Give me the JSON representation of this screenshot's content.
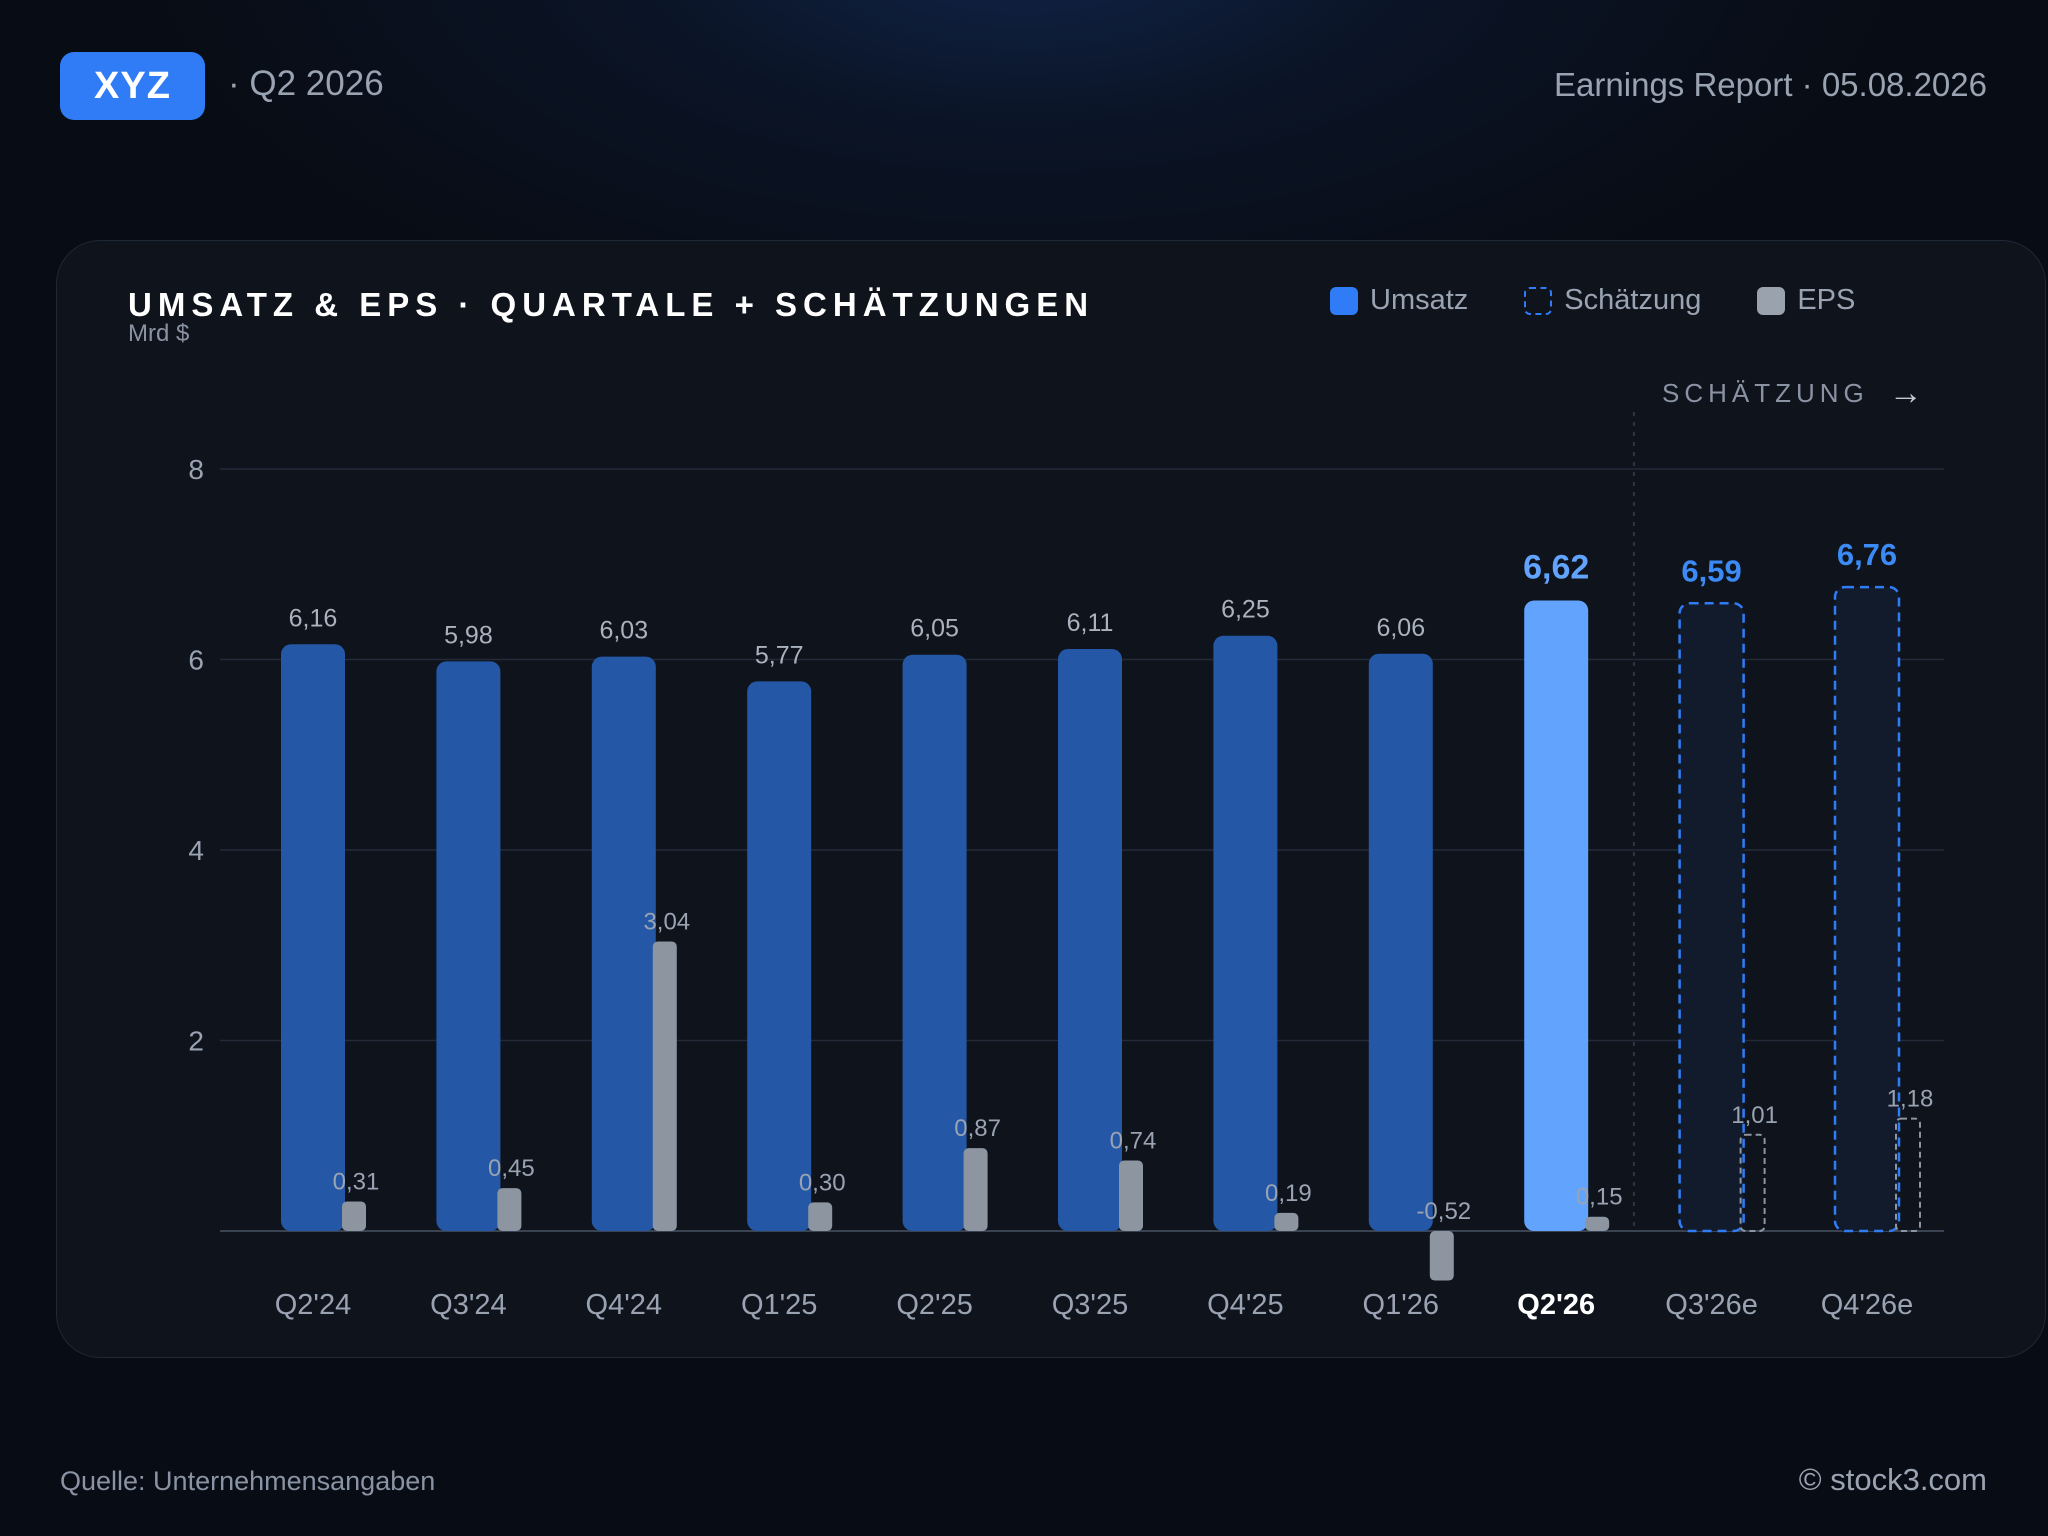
{
  "header": {
    "ticker": "XYZ",
    "period": "· Q2 2026",
    "report": "Earnings Report · 05.08.2026"
  },
  "legend": {
    "revenue": "Umsatz",
    "estimate": "Schätzung",
    "eps": "EPS"
  },
  "estimate_marker": "SCHÄTZUNG",
  "footer": {
    "source": "Quelle: Unternehmensangaben",
    "copyright": "© stock3.com"
  },
  "colors": {
    "revenue": "#2458a6",
    "current": "#62a4fd",
    "estimate_border": "#2f7cf6",
    "estimate_fill": "#111b2c",
    "estimate_label": "#3b8af5",
    "eps": "#8d95a1",
    "grid": "#232b38"
  },
  "chart_data": {
    "type": "bar",
    "title": "UMSATZ & EPS · QUARTALE + SCHÄTZUNGEN",
    "ylabel": "Mrd $",
    "ylim": [
      0,
      8
    ],
    "yticks": [
      2,
      4,
      6,
      8
    ],
    "categories": [
      "Q2'24",
      "Q3'24",
      "Q4'24",
      "Q1'25",
      "Q2'25",
      "Q3'25",
      "Q4'25",
      "Q1'26",
      "Q2'26",
      "Q3'26e",
      "Q4'26e"
    ],
    "current_index": 8,
    "estimate_from_index": 9,
    "series": [
      {
        "name": "Umsatz",
        "values": [
          6.16,
          5.98,
          6.03,
          5.77,
          6.05,
          6.11,
          6.25,
          6.06,
          6.62,
          6.59,
          6.76
        ],
        "labels": [
          "6,16",
          "5,98",
          "6,03",
          "5,77",
          "6,05",
          "6,11",
          "6,25",
          "6,06",
          "6,62",
          "6,59",
          "6,76"
        ]
      },
      {
        "name": "EPS",
        "values": [
          0.31,
          0.45,
          3.04,
          0.3,
          0.87,
          0.74,
          0.19,
          -0.52,
          0.15,
          1.01,
          1.18
        ],
        "labels": [
          "0,31",
          "0,45",
          "3,04",
          "0,30",
          "0,87",
          "0,74",
          "0,19",
          "-0,52",
          "0,15",
          "1,01",
          "1,18"
        ]
      }
    ],
    "legend_position": "top-right",
    "grid": true
  }
}
